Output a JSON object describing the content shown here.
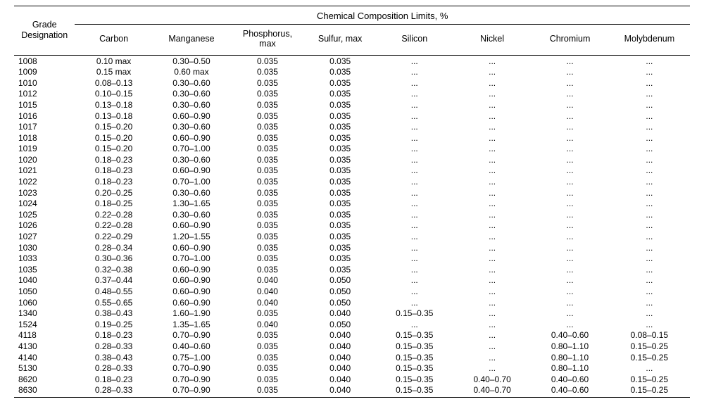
{
  "table": {
    "header": {
      "grade_l1": "Grade",
      "grade_l2": "Designation",
      "group_title": "Chemical Composition Limits, %",
      "columns": [
        "Carbon",
        "Manganese",
        "Phosphorus,\nmax",
        "Sulfur, max",
        "Silicon",
        "Nickel",
        "Chromium",
        "Molybdenum"
      ]
    },
    "rows": [
      {
        "grade": "1008",
        "vals": [
          "0.10 max",
          "0.30–0.50",
          "0.035",
          "0.035",
          "...",
          "...",
          "...",
          "..."
        ]
      },
      {
        "grade": "1009",
        "vals": [
          "0.15 max",
          "0.60 max",
          "0.035",
          "0.035",
          "...",
          "...",
          "...",
          "..."
        ]
      },
      {
        "grade": "1010",
        "vals": [
          "0.08–0.13",
          "0.30–0.60",
          "0.035",
          "0.035",
          "...",
          "...",
          "...",
          "..."
        ]
      },
      {
        "grade": "1012",
        "vals": [
          "0.10–0.15",
          "0.30–0.60",
          "0.035",
          "0.035",
          "...",
          "...",
          "...",
          "..."
        ]
      },
      {
        "grade": "1015",
        "vals": [
          "0.13–0.18",
          "0.30–0.60",
          "0.035",
          "0.035",
          "...",
          "...",
          "...",
          "..."
        ]
      },
      {
        "grade": "1016",
        "vals": [
          "0.13–0.18",
          "0.60–0.90",
          "0.035",
          "0.035",
          "...",
          "...",
          "...",
          "..."
        ]
      },
      {
        "grade": "1017",
        "vals": [
          "0.15–0.20",
          "0.30–0.60",
          "0.035",
          "0.035",
          "...",
          "...",
          "...",
          "..."
        ]
      },
      {
        "grade": "1018",
        "vals": [
          "0.15–0.20",
          "0.60–0.90",
          "0.035",
          "0.035",
          "...",
          "...",
          "...",
          "..."
        ]
      },
      {
        "grade": "1019",
        "vals": [
          "0.15–0.20",
          "0.70–1.00",
          "0.035",
          "0.035",
          "...",
          "...",
          "...",
          "..."
        ]
      },
      {
        "grade": "1020",
        "vals": [
          "0.18–0.23",
          "0.30–0.60",
          "0.035",
          "0.035",
          "...",
          "...",
          "...",
          "..."
        ]
      },
      {
        "grade": "1021",
        "vals": [
          "0.18–0.23",
          "0.60–0.90",
          "0.035",
          "0.035",
          "...",
          "...",
          "...",
          "..."
        ]
      },
      {
        "grade": "1022",
        "vals": [
          "0.18–0.23",
          "0.70–1.00",
          "0.035",
          "0.035",
          "...",
          "...",
          "...",
          "..."
        ]
      },
      {
        "grade": "1023",
        "vals": [
          "0.20–0.25",
          "0.30–0.60",
          "0.035",
          "0.035",
          "...",
          "...",
          "...",
          "..."
        ]
      },
      {
        "grade": "1024",
        "vals": [
          "0.18–0.25",
          "1.30–1.65",
          "0.035",
          "0.035",
          "...",
          "...",
          "...",
          "..."
        ]
      },
      {
        "grade": "1025",
        "vals": [
          "0.22–0.28",
          "0.30–0.60",
          "0.035",
          "0.035",
          "...",
          "...",
          "...",
          "..."
        ]
      },
      {
        "grade": "1026",
        "vals": [
          "0.22–0.28",
          "0.60–0.90",
          "0.035",
          "0.035",
          "...",
          "...",
          "...",
          "..."
        ]
      },
      {
        "grade": "1027",
        "vals": [
          "0.22–0.29",
          "1.20–1.55",
          "0.035",
          "0.035",
          "...",
          "...",
          "...",
          "..."
        ]
      },
      {
        "grade": "1030",
        "vals": [
          "0.28–0.34",
          "0.60–0.90",
          "0.035",
          "0.035",
          "...",
          "...",
          "...",
          "..."
        ]
      },
      {
        "grade": "1033",
        "vals": [
          "0.30–0.36",
          "0.70–1.00",
          "0.035",
          "0.035",
          "...",
          "...",
          "...",
          "..."
        ]
      },
      {
        "grade": "1035",
        "vals": [
          "0.32–0.38",
          "0.60–0.90",
          "0.035",
          "0.035",
          "...",
          "...",
          "...",
          "..."
        ]
      },
      {
        "grade": "1040",
        "vals": [
          "0.37–0.44",
          "0.60–0.90",
          "0.040",
          "0.050",
          "...",
          "...",
          "...",
          "..."
        ]
      },
      {
        "grade": "1050",
        "vals": [
          "0.48–0.55",
          "0.60–0.90",
          "0.040",
          "0.050",
          "...",
          "...",
          "...",
          "..."
        ]
      },
      {
        "grade": "1060",
        "vals": [
          "0.55–0.65",
          "0.60–0.90",
          "0.040",
          "0.050",
          "...",
          "...",
          "...",
          "..."
        ]
      },
      {
        "grade": "1340",
        "vals": [
          "0.38–0.43",
          "1.60–1.90",
          "0.035",
          "0.040",
          "0.15–0.35",
          "...",
          "...",
          "..."
        ]
      },
      {
        "grade": "1524",
        "vals": [
          "0.19–0.25",
          "1.35–1.65",
          "0.040",
          "0.050",
          "...",
          "...",
          "...",
          "..."
        ]
      },
      {
        "grade": "4118",
        "vals": [
          "0.18–0.23",
          "0.70–0.90",
          "0.035",
          "0.040",
          "0.15–0.35",
          "...",
          "0.40–0.60",
          "0.08–0.15"
        ]
      },
      {
        "grade": "4130",
        "vals": [
          "0.28–0.33",
          "0.40–0.60",
          "0.035",
          "0.040",
          "0.15–0.35",
          "...",
          "0.80–1.10",
          "0.15–0.25"
        ]
      },
      {
        "grade": "4140",
        "vals": [
          "0.38–0.43",
          "0.75–1.00",
          "0.035",
          "0.040",
          "0.15–0.35",
          "...",
          "0.80–1.10",
          "0.15–0.25"
        ]
      },
      {
        "grade": "5130",
        "vals": [
          "0.28–0.33",
          "0.70–0.90",
          "0.035",
          "0.040",
          "0.15–0.35",
          "...",
          "0.80–1.10",
          "..."
        ]
      },
      {
        "grade": "8620",
        "vals": [
          "0.18–0.23",
          "0.70–0.90",
          "0.035",
          "0.040",
          "0.15–0.35",
          "0.40–0.70",
          "0.40–0.60",
          "0.15–0.25"
        ]
      },
      {
        "grade": "8630",
        "vals": [
          "0.28–0.33",
          "0.70–0.90",
          "0.035",
          "0.040",
          "0.15–0.35",
          "0.40–0.70",
          "0.40–0.60",
          "0.15–0.25"
        ]
      }
    ]
  }
}
